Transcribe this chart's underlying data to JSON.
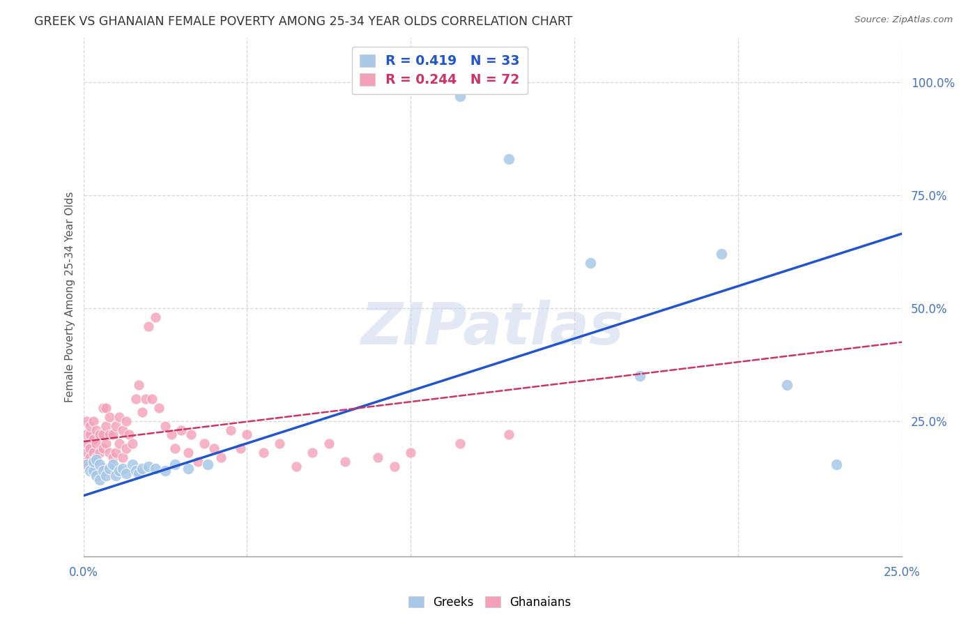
{
  "title": "GREEK VS GHANAIAN FEMALE POVERTY AMONG 25-34 YEAR OLDS CORRELATION CHART",
  "source": "Source: ZipAtlas.com",
  "ylabel": "Female Poverty Among 25-34 Year Olds",
  "xlim": [
    0.0,
    0.25
  ],
  "ylim": [
    -0.05,
    1.1
  ],
  "yticks_right": [
    1.0,
    0.75,
    0.5,
    0.25
  ],
  "ytick_labels_right": [
    "100.0%",
    "75.0%",
    "50.0%",
    "25.0%"
  ],
  "xtick_positions": [
    0.0,
    0.05,
    0.1,
    0.15,
    0.2,
    0.25
  ],
  "xtick_labels": [
    "0.0%",
    "",
    "",
    "",
    "",
    "25.0%"
  ],
  "greek_R": 0.419,
  "greek_N": 33,
  "ghanaian_R": 0.244,
  "ghanaian_N": 72,
  "blue_scatter_color": "#a8c8e8",
  "pink_scatter_color": "#f4a0b8",
  "trend_blue": "#2255cc",
  "trend_pink": "#cc3366",
  "axis_color": "#4472c4",
  "grid_color": "#cccccc",
  "background_color": "#ffffff",
  "watermark": "ZIPatlas",
  "greek_x": [
    0.001,
    0.002,
    0.003,
    0.003,
    0.004,
    0.004,
    0.005,
    0.005,
    0.006,
    0.007,
    0.008,
    0.009,
    0.01,
    0.011,
    0.012,
    0.013,
    0.015,
    0.016,
    0.017,
    0.018,
    0.02,
    0.022,
    0.025,
    0.028,
    0.032,
    0.038,
    0.115,
    0.13,
    0.155,
    0.17,
    0.195,
    0.215,
    0.23
  ],
  "greek_y": [
    0.155,
    0.14,
    0.14,
    0.16,
    0.13,
    0.165,
    0.12,
    0.155,
    0.14,
    0.13,
    0.145,
    0.155,
    0.13,
    0.14,
    0.145,
    0.135,
    0.155,
    0.14,
    0.135,
    0.145,
    0.15,
    0.145,
    0.14,
    0.155,
    0.145,
    0.155,
    0.97,
    0.83,
    0.6,
    0.35,
    0.62,
    0.33,
    0.155
  ],
  "ghanaian_x": [
    0.001,
    0.001,
    0.001,
    0.001,
    0.001,
    0.002,
    0.002,
    0.002,
    0.002,
    0.003,
    0.003,
    0.003,
    0.003,
    0.004,
    0.004,
    0.004,
    0.005,
    0.005,
    0.005,
    0.006,
    0.006,
    0.006,
    0.007,
    0.007,
    0.007,
    0.008,
    0.008,
    0.008,
    0.009,
    0.009,
    0.01,
    0.01,
    0.011,
    0.011,
    0.012,
    0.012,
    0.013,
    0.013,
    0.014,
    0.015,
    0.016,
    0.017,
    0.018,
    0.019,
    0.02,
    0.021,
    0.022,
    0.023,
    0.025,
    0.027,
    0.028,
    0.03,
    0.032,
    0.033,
    0.035,
    0.037,
    0.04,
    0.042,
    0.045,
    0.048,
    0.05,
    0.055,
    0.06,
    0.065,
    0.07,
    0.075,
    0.08,
    0.09,
    0.095,
    0.1,
    0.115,
    0.13
  ],
  "ghanaian_y": [
    0.18,
    0.2,
    0.22,
    0.25,
    0.16,
    0.17,
    0.19,
    0.22,
    0.24,
    0.16,
    0.18,
    0.21,
    0.25,
    0.17,
    0.2,
    0.23,
    0.15,
    0.18,
    0.22,
    0.19,
    0.22,
    0.28,
    0.2,
    0.24,
    0.28,
    0.18,
    0.22,
    0.26,
    0.17,
    0.22,
    0.18,
    0.24,
    0.2,
    0.26,
    0.17,
    0.23,
    0.19,
    0.25,
    0.22,
    0.2,
    0.3,
    0.33,
    0.27,
    0.3,
    0.46,
    0.3,
    0.48,
    0.28,
    0.24,
    0.22,
    0.19,
    0.23,
    0.18,
    0.22,
    0.16,
    0.2,
    0.19,
    0.17,
    0.23,
    0.19,
    0.22,
    0.18,
    0.2,
    0.15,
    0.18,
    0.2,
    0.16,
    0.17,
    0.15,
    0.18,
    0.2,
    0.22
  ],
  "trend_greek_x0": 0.0,
  "trend_greek_y0": 0.085,
  "trend_greek_x1": 0.25,
  "trend_greek_y1": 0.665,
  "trend_ghana_x0": 0.0,
  "trend_ghana_y0": 0.205,
  "trend_ghana_x1": 0.25,
  "trend_ghana_y1": 0.425
}
